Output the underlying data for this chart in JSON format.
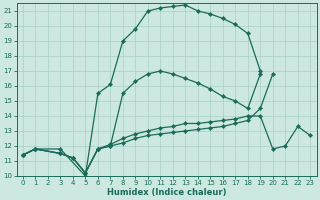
{
  "xlabel": "Humidex (Indice chaleur)",
  "ylabel": "",
  "background_color": "#cce8e0",
  "grid_color": "#aacfc8",
  "line_color": "#1a6b5a",
  "xlim": [
    -0.5,
    23.5
  ],
  "ylim": [
    10,
    21.5
  ],
  "xticks": [
    0,
    1,
    2,
    3,
    4,
    5,
    6,
    7,
    8,
    9,
    10,
    11,
    12,
    13,
    14,
    15,
    16,
    17,
    18,
    19,
    20,
    21,
    22,
    23
  ],
  "yticks": [
    10,
    11,
    12,
    13,
    14,
    15,
    16,
    17,
    18,
    19,
    20,
    21
  ],
  "lines": [
    {
      "x": [
        0,
        1,
        3,
        5,
        6,
        7,
        8,
        9,
        10,
        11,
        12,
        13,
        14,
        15,
        16,
        17,
        18,
        19
      ],
      "y": [
        11.4,
        11.8,
        11.8,
        10.0,
        15.5,
        16.1,
        19.0,
        19.8,
        21.0,
        21.2,
        21.3,
        21.4,
        21.0,
        20.8,
        20.5,
        20.1,
        19.5,
        17.0
      ]
    },
    {
      "x": [
        0,
        1,
        3,
        4,
        5,
        6,
        7,
        8,
        9,
        10,
        11,
        12,
        13,
        14,
        15,
        16,
        17,
        18,
        19
      ],
      "y": [
        11.4,
        11.8,
        11.5,
        11.2,
        10.2,
        11.8,
        12.0,
        15.5,
        16.3,
        16.8,
        17.0,
        16.8,
        16.5,
        16.2,
        15.8,
        15.3,
        15.0,
        14.5,
        16.8
      ]
    },
    {
      "x": [
        0,
        1,
        3,
        4,
        5,
        6,
        7,
        8,
        9,
        10,
        11,
        12,
        13,
        14,
        15,
        16,
        17,
        18,
        19,
        20,
        21,
        22,
        23
      ],
      "y": [
        11.4,
        11.8,
        11.5,
        11.2,
        10.2,
        11.8,
        12.1,
        12.5,
        12.8,
        13.0,
        13.2,
        13.3,
        13.5,
        13.5,
        13.6,
        13.7,
        13.8,
        14.0,
        14.0,
        11.8,
        12.0,
        13.3,
        12.7
      ]
    },
    {
      "x": [
        0,
        1,
        3,
        4,
        5,
        6,
        7,
        8,
        9,
        10,
        11,
        12,
        13,
        14,
        15,
        16,
        17,
        18,
        19,
        20
      ],
      "y": [
        11.4,
        11.8,
        11.5,
        11.2,
        10.2,
        11.8,
        12.0,
        12.2,
        12.5,
        12.7,
        12.8,
        12.9,
        13.0,
        13.1,
        13.2,
        13.3,
        13.5,
        13.7,
        14.5,
        16.8
      ]
    }
  ]
}
